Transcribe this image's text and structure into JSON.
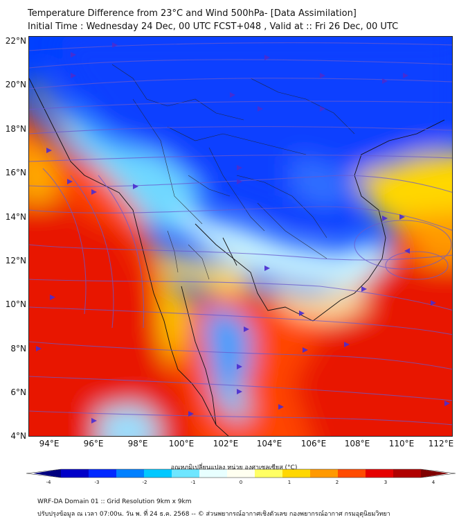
{
  "title": {
    "line1": "Temperature Difference from 23°C and Wind 500hPa- [Data Assimilation]",
    "line2": "Initial Time : Wednesday 24 Dec, 00 UTC FCST+048 , Valid at ::  Fri 26 Dec, 00 UTC"
  },
  "map": {
    "lat_labels": [
      "22°N",
      "20°N",
      "18°N",
      "16°N",
      "14°N",
      "12°N",
      "10°N",
      "8°N",
      "6°N",
      "4°N"
    ],
    "lon_labels": [
      "94°E",
      "96°E",
      "98°E",
      "100°E",
      "102°E",
      "104°E",
      "106°E",
      "108°E",
      "110°E",
      "112°E"
    ]
  },
  "colorbar": {
    "title": "อุณหภูมิเปลี่ยนแปลง หน่วย องศาเซลเซียส (°C)",
    "ticks": [
      "-4",
      "-3",
      "-2",
      "-1",
      "0",
      "1",
      "2",
      "3",
      "4"
    ],
    "colors": [
      "#00007f",
      "#0000c8",
      "#0028ff",
      "#0080ff",
      "#00c8ff",
      "#6ee6ff",
      "#e8ffff",
      "#fffff0",
      "#ffff64",
      "#ffd700",
      "#ff9900",
      "#ff4b00",
      "#e60000",
      "#b00000",
      "#7f0000"
    ]
  },
  "footer": {
    "line1": "WRF-DA Domain 01 :: Grid Resolution 9km x 9km",
    "line2": "ปรับปรุงข้อมูล ณ เวลา 07:00น. วัน พ. ที่ 24 ธ.ค. 2568 -- © ส่วนพยากรณ์อากาศเชิงตัวเลข กองพยากรณ์อากาศ กรมอุตุนิยมวิทยา"
  }
}
